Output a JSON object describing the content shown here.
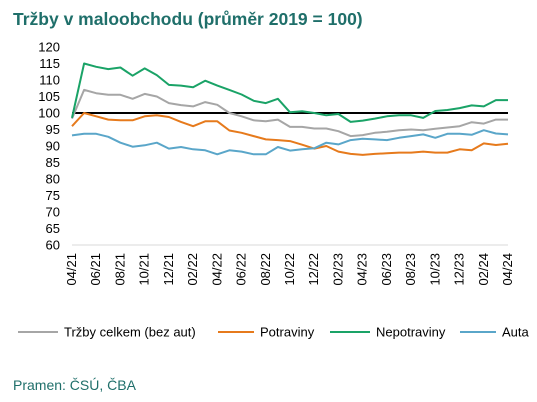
{
  "title": "Tržby v maloobchodu (průměr 2019 = 100)",
  "source": "Pramen: ČSÚ, ČBA",
  "chart_data": {
    "type": "line",
    "title": "Tržby v maloobchodu (průměr 2019 = 100)",
    "xlabel": "",
    "ylabel": "",
    "ylim": [
      60,
      120
    ],
    "yticks": [
      60,
      65,
      70,
      75,
      80,
      85,
      90,
      95,
      100,
      105,
      110,
      115,
      120
    ],
    "reference_line": 100,
    "grid": false,
    "legend_position": "bottom",
    "x": [
      "04/21",
      "05/21",
      "06/21",
      "07/21",
      "08/21",
      "09/21",
      "10/21",
      "11/21",
      "12/21",
      "01/22",
      "02/22",
      "03/22",
      "04/22",
      "05/22",
      "06/22",
      "07/22",
      "08/22",
      "09/22",
      "10/22",
      "11/22",
      "12/22",
      "01/23",
      "02/23",
      "03/23",
      "04/23",
      "05/23",
      "06/23",
      "07/23",
      "08/23",
      "09/23",
      "10/23",
      "11/23",
      "12/23",
      "01/24",
      "02/24",
      "03/24",
      "04/24"
    ],
    "xtick_labels": [
      "04/21",
      "06/21",
      "08/21",
      "10/21",
      "12/21",
      "02/22",
      "04/22",
      "06/22",
      "08/22",
      "10/22",
      "12/22",
      "02/23",
      "04/23",
      "06/23",
      "08/23",
      "10/23",
      "12/23",
      "02/24",
      "04/24"
    ],
    "series": [
      {
        "name": "Tržby celkem (bez aut)",
        "color": "#a6a6a6",
        "values": [
          98.3,
          107.0,
          106.0,
          105.5,
          105.5,
          104.3,
          105.8,
          105.0,
          103.0,
          102.4,
          102.0,
          103.3,
          102.5,
          100.0,
          99.0,
          97.8,
          97.5,
          98.0,
          95.8,
          95.8,
          95.3,
          95.3,
          94.5,
          93.0,
          93.3,
          94.0,
          94.3,
          94.8,
          95.0,
          94.8,
          95.2,
          95.6,
          96.0,
          97.2,
          96.8,
          98.0,
          98.0
        ]
      },
      {
        "name": "Potraviny",
        "color": "#e67a1c",
        "values": [
          96.0,
          100.0,
          99.0,
          98.0,
          97.8,
          97.8,
          99.0,
          99.3,
          98.8,
          97.3,
          96.0,
          97.5,
          97.5,
          94.7,
          94.0,
          93.0,
          92.0,
          91.8,
          91.5,
          90.4,
          89.2,
          90.0,
          88.3,
          87.6,
          87.3,
          87.6,
          87.8,
          88.0,
          88.0,
          88.3,
          88.0,
          88.0,
          89.0,
          88.7,
          90.8,
          90.3,
          90.7
        ]
      },
      {
        "name": "Nepotraviny",
        "color": "#1aa367",
        "values": [
          98.5,
          115.0,
          114.0,
          113.3,
          113.8,
          111.3,
          113.5,
          111.5,
          108.5,
          108.3,
          107.8,
          109.8,
          108.3,
          107.0,
          105.6,
          103.7,
          103.0,
          104.3,
          100.2,
          100.5,
          100.0,
          99.3,
          99.7,
          97.3,
          97.7,
          98.3,
          99.0,
          99.3,
          99.3,
          98.5,
          100.6,
          100.9,
          101.5,
          102.3,
          102.0,
          103.9,
          103.9
        ]
      },
      {
        "name": "Auta",
        "color": "#5aa6c9",
        "values": [
          93.2,
          93.7,
          93.7,
          92.8,
          91.0,
          89.8,
          90.2,
          91.0,
          89.2,
          89.7,
          89.0,
          88.7,
          87.5,
          88.7,
          88.3,
          87.5,
          87.5,
          89.7,
          88.6,
          89.0,
          89.3,
          91.0,
          90.5,
          91.8,
          92.2,
          92.0,
          91.8,
          92.5,
          93.0,
          93.5,
          92.5,
          93.7,
          93.7,
          93.4,
          94.8,
          93.8,
          93.5
        ]
      }
    ]
  }
}
